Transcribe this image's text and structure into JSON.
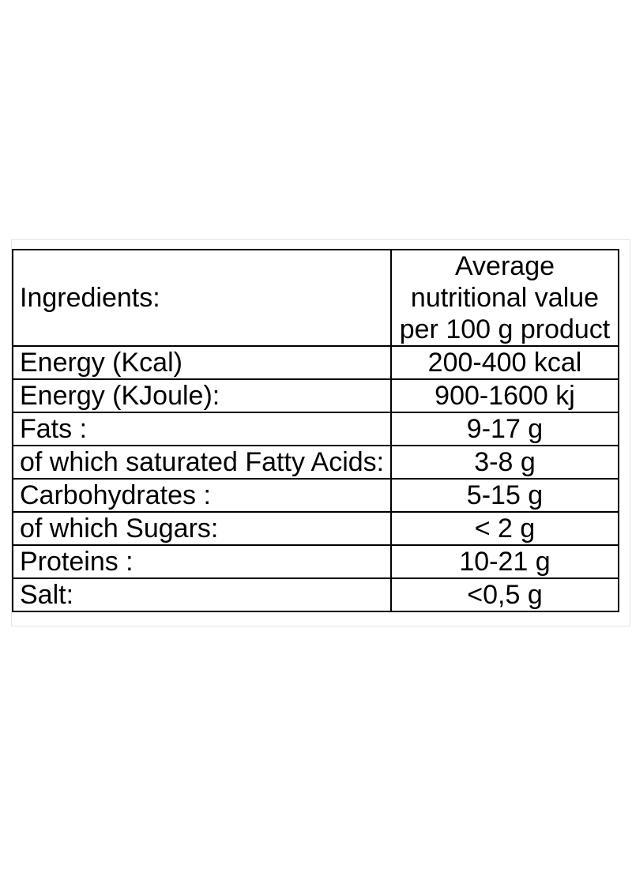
{
  "window": {
    "background": "#ffffff"
  },
  "nutrition_table": {
    "header": {
      "ingredients_label": "Ingredients:",
      "value_header_lines": [
        "Average",
        "nutritional value",
        "per 100 g product"
      ]
    },
    "rows": [
      {
        "label": "Energy (Kcal)",
        "value": "200-400 kcal"
      },
      {
        "label": "Energy (KJoule):",
        "value": "900-1600 kj"
      },
      {
        "label": "Fats :",
        "value": "9-17 g"
      },
      {
        "label": "of which saturated Fatty Acids:",
        "value": "3-8 g"
      },
      {
        "label": "Carbohydrates :",
        "value": "5-15 g"
      },
      {
        "label": "of which Sugars:",
        "value": "< 2 g"
      },
      {
        "label": "Proteins :",
        "value": "10-21 g"
      },
      {
        "label": "Salt:",
        "value": "<0,5 g"
      }
    ]
  },
  "colors": {
    "table_border": "#000000",
    "text": "#000000",
    "frame_border": "#e4e4e4",
    "background": "#ffffff"
  }
}
